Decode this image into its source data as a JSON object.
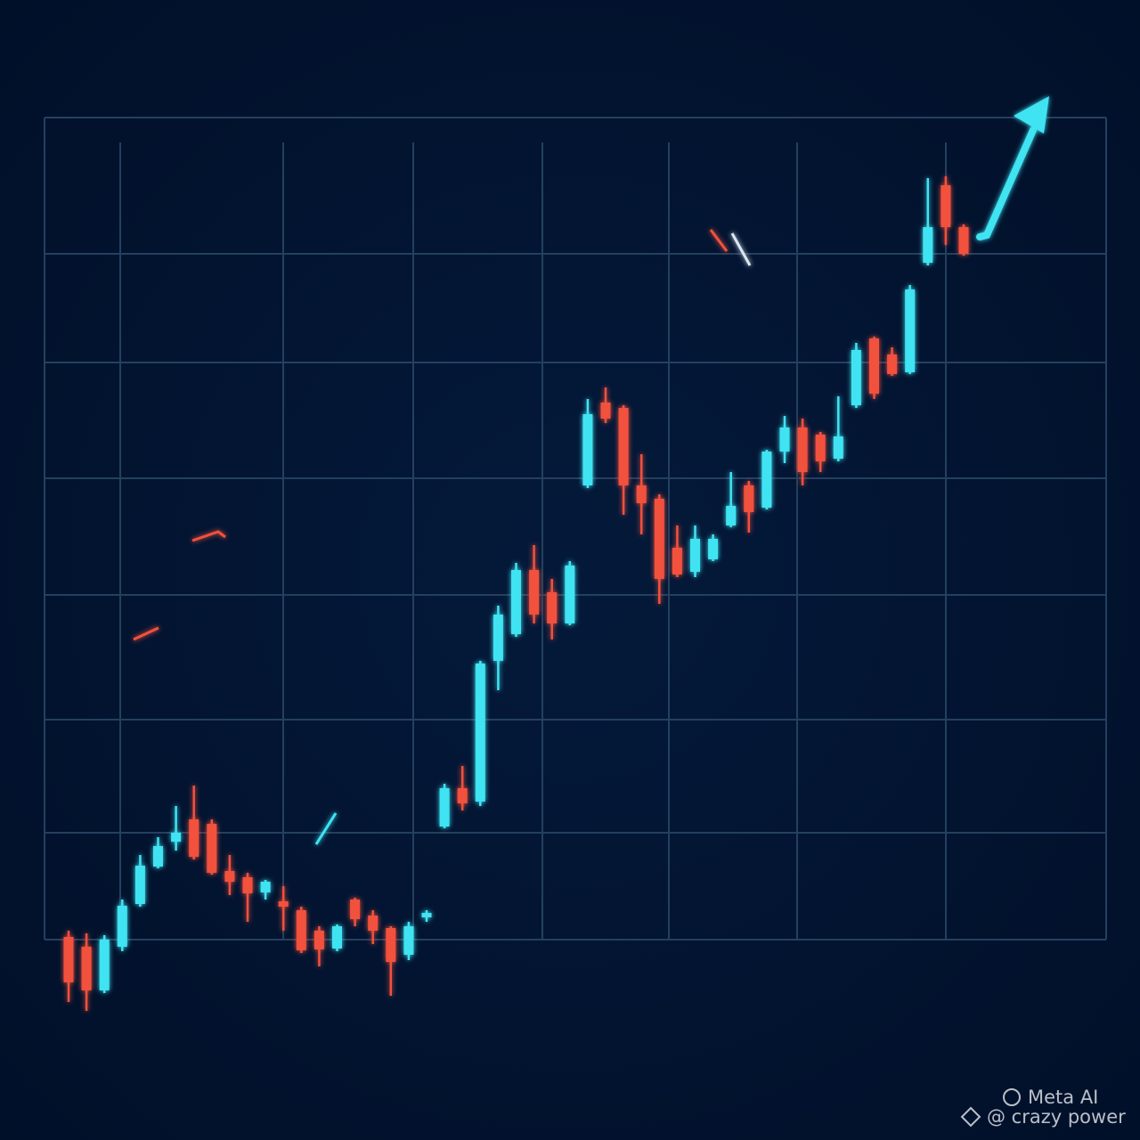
{
  "chart_data": {
    "type": "candlestick",
    "open": [
      88,
      77,
      28,
      77,
      125,
      167,
      195,
      220,
      215,
      162,
      155,
      138,
      128,
      118,
      95,
      75,
      130,
      112,
      98,
      68,
      110,
      212,
      255,
      240,
      398,
      428,
      500,
      475,
      440,
      595,
      688,
      682,
      595,
      580,
      525,
      498,
      512,
      550,
      595,
      570,
      633,
      660,
      652,
      625,
      685,
      760,
      742,
      722,
      845,
      932,
      885
    ],
    "high": [
      95,
      92,
      90,
      130,
      180,
      200,
      235,
      258,
      220,
      180,
      160,
      152,
      145,
      122,
      100,
      102,
      132,
      118,
      100,
      105,
      118,
      260,
      280,
      398,
      460,
      508,
      528,
      490,
      510,
      692,
      705,
      685,
      630,
      585,
      550,
      550,
      540,
      610,
      600,
      635,
      673,
      670,
      655,
      695,
      755,
      762,
      750,
      820,
      940,
      942,
      888
    ],
    "low": [
      15,
      5,
      25,
      72,
      122,
      165,
      185,
      175,
      158,
      135,
      105,
      130,
      95,
      70,
      55,
      72,
      100,
      80,
      22,
      62,
      105,
      210,
      230,
      235,
      365,
      425,
      440,
      422,
      438,
      592,
      665,
      562,
      540,
      462,
      492,
      492,
      510,
      548,
      542,
      568,
      620,
      595,
      610,
      622,
      682,
      692,
      718,
      720,
      842,
      865,
      853
    ],
    "close": [
      37,
      28,
      85,
      123,
      168,
      190,
      205,
      178,
      160,
      150,
      137,
      150,
      122,
      73,
      74,
      100,
      108,
      95,
      60,
      100,
      115,
      255,
      238,
      395,
      450,
      500,
      450,
      440,
      505,
      675,
      670,
      595,
      575,
      490,
      495,
      535,
      535,
      572,
      565,
      633,
      660,
      610,
      622,
      650,
      747,
      698,
      720,
      815,
      885,
      885,
      855
    ],
    "ylim": [
      0,
      1000
    ],
    "grid": true,
    "up_color": "#3fe3f2",
    "down_color": "#f2513d"
  },
  "watermark": {
    "brand": "Meta AI",
    "credit": "@ crazy power"
  }
}
